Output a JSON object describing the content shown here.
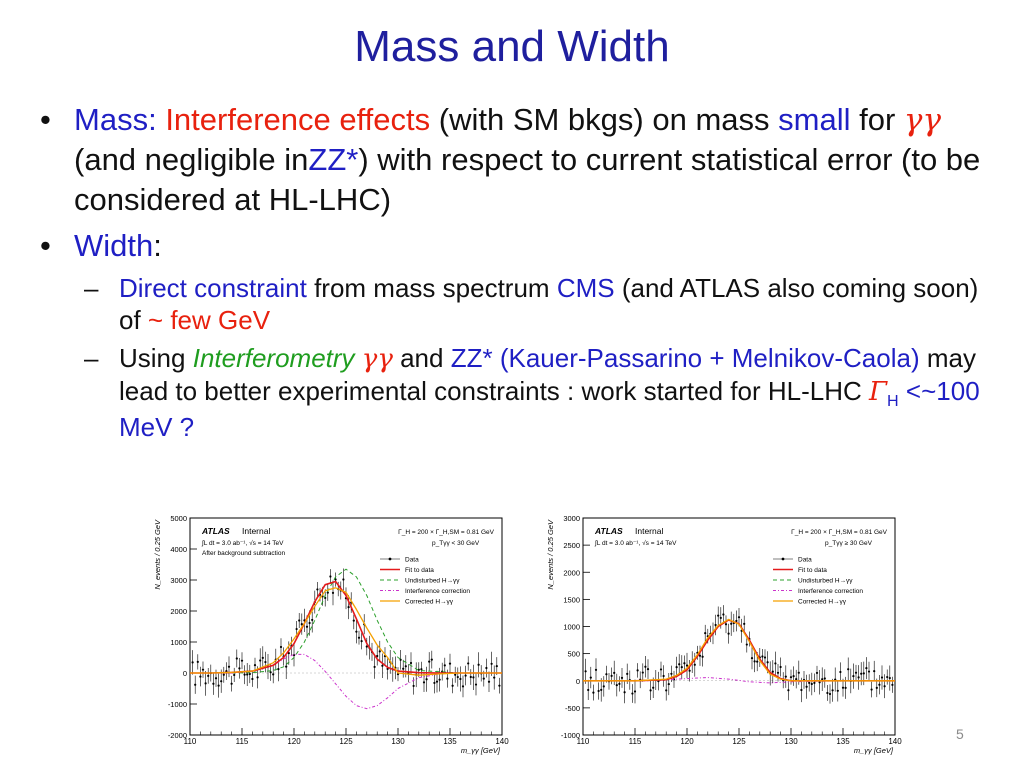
{
  "slide": {
    "title": "Mass and Width",
    "page_number": "5",
    "bullet1": {
      "label": "Mass:",
      "highlight": "Interference effects",
      "text1": "(with SM bkgs) on mass",
      "small_word": "small",
      "for_word": "for",
      "gg": "γγ",
      "text2": "(and negligible in",
      "zz": "ZZ*",
      "text3": ") with respect to current statistical error (to be considered at HL-LHC)"
    },
    "bullet2": {
      "label": "Width",
      "colon": ":"
    },
    "sub1": {
      "highlight": "Direct constraint",
      "text1": "from mass spectrum",
      "cms": "CMS",
      "text2": "(and ATLAS also coming soon) of",
      "few": "~ few GeV"
    },
    "sub2": {
      "using": "Using",
      "interferometry": "Interferometry",
      "gg": "γγ",
      "and": "and",
      "refs": "ZZ* (Kauer-Passarino + Melnikov-Caola)",
      "text1": "may lead to better experimental constraints : work started for HL-LHC",
      "gamma": "Γ",
      "gamma_sub": "H",
      "limit": "<~100 MeV ?"
    }
  },
  "chart_data": [
    {
      "type": "line",
      "panel": "left",
      "title": "",
      "xlabel": "m_γγ [GeV]",
      "ylabel": "N_events / 0.25 GeV",
      "xlim": [
        110,
        140
      ],
      "ylim": [
        -2000,
        5000
      ],
      "xticks": [
        "110",
        "115",
        "120",
        "125",
        "130",
        "135",
        "140"
      ],
      "yticks": [
        "-2000",
        "-1000",
        "0",
        "1000",
        "2000",
        "3000",
        "4000",
        "5000"
      ],
      "annotations": {
        "experiment": "ATLAS",
        "status": "Internal",
        "lumi": "∫L dt = 3.0 ab⁻¹, √s = 14 TeV",
        "note": "After background subtraction",
        "width": "Γ_H = 200 × Γ_H,SM = 0.81 GeV",
        "cut": "p_Tγγ < 30 GeV"
      },
      "legend": [
        "Data",
        "Fit to data",
        "Undisturbed H→γγ",
        "Interference correction",
        "Corrected H→γγ"
      ],
      "legend_position": "top-right",
      "series": [
        {
          "name": "Fit to data",
          "color": "#e41a1c",
          "x": [
            110,
            112,
            114,
            116,
            118,
            119,
            120,
            121,
            122,
            123,
            124,
            125,
            126,
            127,
            128,
            129,
            130,
            132,
            134,
            136,
            138,
            140
          ],
          "values": [
            0,
            0,
            20,
            60,
            250,
            500,
            950,
            1600,
            2300,
            2850,
            2950,
            2500,
            1750,
            950,
            450,
            180,
            60,
            10,
            0,
            0,
            0,
            0
          ]
        },
        {
          "name": "Undisturbed H→γγ",
          "color": "#2ca02c",
          "x": [
            110,
            114,
            116,
            118,
            119,
            120,
            121,
            122,
            123,
            124,
            125,
            126,
            127,
            128,
            129,
            130,
            132,
            136,
            140
          ],
          "values": [
            0,
            0,
            10,
            80,
            200,
            500,
            1000,
            1700,
            2500,
            3100,
            3350,
            3100,
            2500,
            1700,
            1000,
            500,
            80,
            0,
            0
          ]
        },
        {
          "name": "Interference correction",
          "color": "#cc33cc",
          "x": [
            110,
            114,
            116,
            118,
            119,
            120,
            121,
            122,
            123,
            124,
            125,
            126,
            127,
            128,
            129,
            130,
            132,
            134,
            136,
            140
          ],
          "values": [
            0,
            0,
            50,
            250,
            450,
            600,
            600,
            400,
            50,
            -350,
            -750,
            -1050,
            -1150,
            -1050,
            -800,
            -500,
            -150,
            -30,
            0,
            0
          ]
        },
        {
          "name": "Corrected H→γγ",
          "color": "#f5a000",
          "x": [
            110,
            112,
            114,
            116,
            118,
            119,
            120,
            121,
            122,
            123,
            124,
            125,
            126,
            127,
            128,
            129,
            130,
            132,
            134,
            136,
            140
          ],
          "values": [
            0,
            0,
            20,
            60,
            330,
            650,
            1100,
            1600,
            2150,
            2650,
            2750,
            2600,
            2050,
            1450,
            900,
            500,
            0,
            -70,
            -30,
            0,
            0
          ]
        }
      ]
    },
    {
      "type": "line",
      "panel": "right",
      "title": "",
      "xlabel": "m_γγ [GeV]",
      "ylabel": "N_events / 0.25 GeV",
      "xlim": [
        110,
        140
      ],
      "ylim": [
        -1000,
        3000
      ],
      "xticks": [
        "110",
        "115",
        "120",
        "125",
        "130",
        "135",
        "140"
      ],
      "yticks": [
        "-1000",
        "-500",
        "0",
        "500",
        "1000",
        "1500",
        "2000",
        "2500",
        "3000"
      ],
      "annotations": {
        "experiment": "ATLAS",
        "status": "Internal",
        "lumi": "∫L dt = 3.0 ab⁻¹, √s = 14 TeV",
        "note": "",
        "width": "Γ_H = 200 × Γ_H,SM = 0.81 GeV",
        "cut": "p_Tγγ ≥ 30 GeV"
      },
      "legend": [
        "Data",
        "Fit to data",
        "Undisturbed H→γγ",
        "Interference correction",
        "Corrected H→γγ"
      ],
      "legend_position": "top-right",
      "series": [
        {
          "name": "Fit to data",
          "color": "#e41a1c",
          "x": [
            110,
            115,
            118,
            119,
            120,
            121,
            122,
            123,
            124,
            125,
            126,
            127,
            128,
            129,
            130,
            132,
            135,
            140
          ],
          "values": [
            0,
            0,
            20,
            80,
            200,
            450,
            750,
            1000,
            1120,
            1050,
            750,
            400,
            150,
            40,
            0,
            0,
            0,
            0
          ]
        },
        {
          "name": "Undisturbed H→γγ",
          "color": "#2ca02c",
          "x": [
            110,
            115,
            118,
            119,
            120,
            121,
            122,
            123,
            124,
            125,
            126,
            127,
            128,
            129,
            130,
            132,
            135,
            140
          ],
          "values": [
            0,
            0,
            20,
            80,
            200,
            450,
            750,
            1000,
            1120,
            1050,
            750,
            400,
            150,
            40,
            0,
            0,
            0,
            0
          ]
        },
        {
          "name": "Interference correction",
          "color": "#cc33cc",
          "x": [
            110,
            116,
            120,
            122,
            124,
            126,
            128,
            130,
            135,
            140
          ],
          "values": [
            0,
            0,
            40,
            60,
            30,
            -20,
            -40,
            -20,
            0,
            0
          ]
        },
        {
          "name": "Corrected H→γγ",
          "color": "#f5a000",
          "x": [
            110,
            115,
            118,
            119,
            120,
            121,
            122,
            123,
            124,
            125,
            126,
            127,
            128,
            129,
            130,
            132,
            135,
            140
          ],
          "values": [
            0,
            0,
            30,
            100,
            230,
            480,
            790,
            1020,
            1130,
            1040,
            720,
            370,
            120,
            30,
            0,
            0,
            0,
            0
          ]
        }
      ]
    }
  ]
}
